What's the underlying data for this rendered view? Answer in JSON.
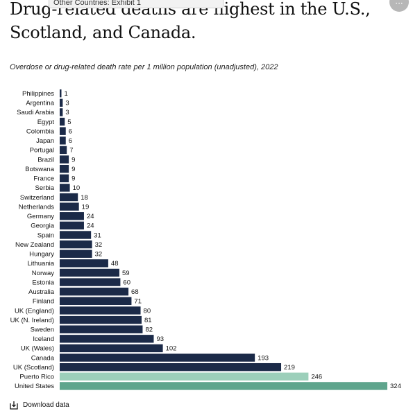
{
  "header": {
    "tooltip": "Other Countries: Exhibit 1",
    "menu_icon": "ellipsis-icon",
    "menu_label": "···",
    "title": "Drug-related deaths are highest in the U.S., Scotland, and Canada.",
    "subtitle": "Overdose or drug-related death rate per 1 million population (unadjusted), 2022"
  },
  "chart_data": {
    "type": "bar",
    "orientation": "horizontal",
    "categories": [
      "Philippines",
      "Argentina",
      "Saudi Arabia",
      "Egypt",
      "Colombia",
      "Japan",
      "Portugal",
      "Brazil",
      "Botswana",
      "France",
      "Serbia",
      "Switzerland",
      "Netherlands",
      "Germany",
      "Georgia",
      "Spain",
      "New Zealand",
      "Hungary",
      "Lithuania",
      "Norway",
      "Estonia",
      "Australia",
      "Finland",
      "UK (England)",
      "UK (N. Ireland)",
      "Sweden",
      "Iceland",
      "UK (Wales)",
      "Canada",
      "UK (Scotland)",
      "Puerto Rico",
      "United States"
    ],
    "values": [
      1,
      3,
      3,
      5,
      6,
      6,
      7,
      9,
      9,
      9,
      10,
      18,
      19,
      24,
      24,
      31,
      32,
      32,
      48,
      59,
      60,
      68,
      71,
      80,
      81,
      82,
      93,
      102,
      193,
      219,
      246,
      324
    ],
    "colors": {
      "default": "#1b2a48",
      "Puerto Rico": "#9ccfba",
      "United States": "#5fa58d"
    },
    "xlim": [
      0,
      324
    ]
  },
  "footer": {
    "download_label": "Download data",
    "download_icon": "download-icon"
  }
}
